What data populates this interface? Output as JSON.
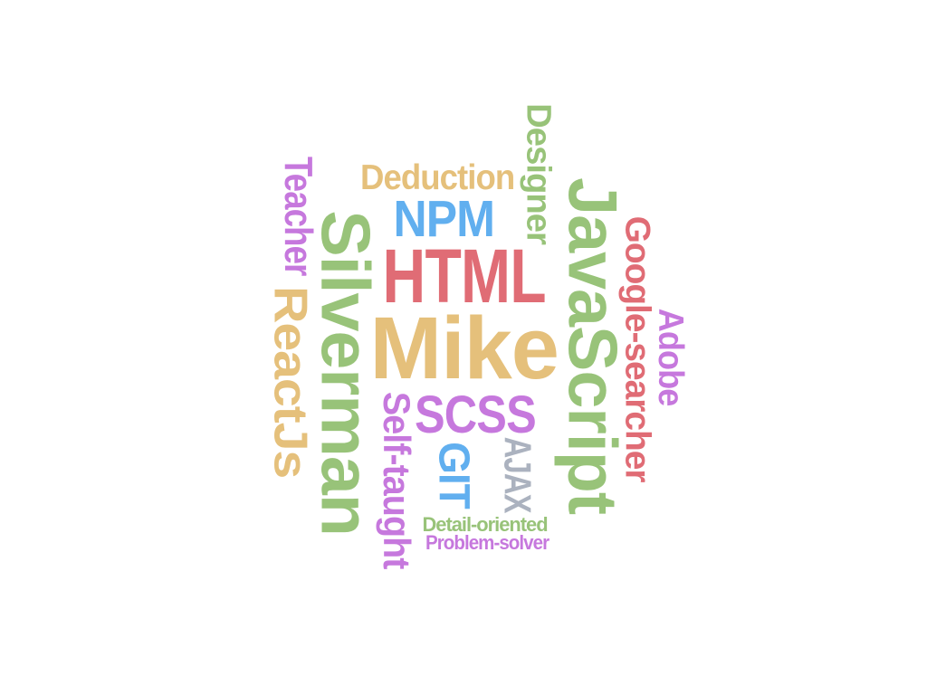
{
  "words": [
    {
      "id": "mike",
      "text": "Mike",
      "color": "#e5c07b",
      "rotate": 0
    },
    {
      "id": "silverman",
      "text": "Silverman",
      "color": "#98c379",
      "rotate": 90
    },
    {
      "id": "javascript",
      "text": "JavaScript",
      "color": "#98c379",
      "rotate": 90
    },
    {
      "id": "html",
      "text": "HTML",
      "color": "#e06c75",
      "rotate": 0
    },
    {
      "id": "reactjs",
      "text": "ReactJs",
      "color": "#e5c07b",
      "rotate": 90
    },
    {
      "id": "scss",
      "text": "SCSS",
      "color": "#c678dd",
      "rotate": 0
    },
    {
      "id": "npm",
      "text": "NPM",
      "color": "#61afef",
      "rotate": 0
    },
    {
      "id": "deduction",
      "text": "Deduction",
      "color": "#e5c07b",
      "rotate": 0
    },
    {
      "id": "designer",
      "text": "Designer",
      "color": "#98c379",
      "rotate": 90
    },
    {
      "id": "teacher",
      "text": "Teacher",
      "color": "#c678dd",
      "rotate": 90
    },
    {
      "id": "google-searcher",
      "text": "Google-searcher",
      "color": "#e06c75",
      "rotate": 90
    },
    {
      "id": "adobe",
      "text": "Adobe",
      "color": "#c678dd",
      "rotate": 90
    },
    {
      "id": "self-taught",
      "text": "Self-taught",
      "color": "#c678dd",
      "rotate": 90
    },
    {
      "id": "git",
      "text": "GIT",
      "color": "#61afef",
      "rotate": 90
    },
    {
      "id": "ajax",
      "text": "AJAX",
      "color": "#abb2bf",
      "rotate": 90
    },
    {
      "id": "detail-oriented",
      "text": "Detail-oriented",
      "color": "#98c379",
      "rotate": 0
    },
    {
      "id": "problem-solver",
      "text": "Problem-solver",
      "color": "#c678dd",
      "rotate": 0
    }
  ]
}
